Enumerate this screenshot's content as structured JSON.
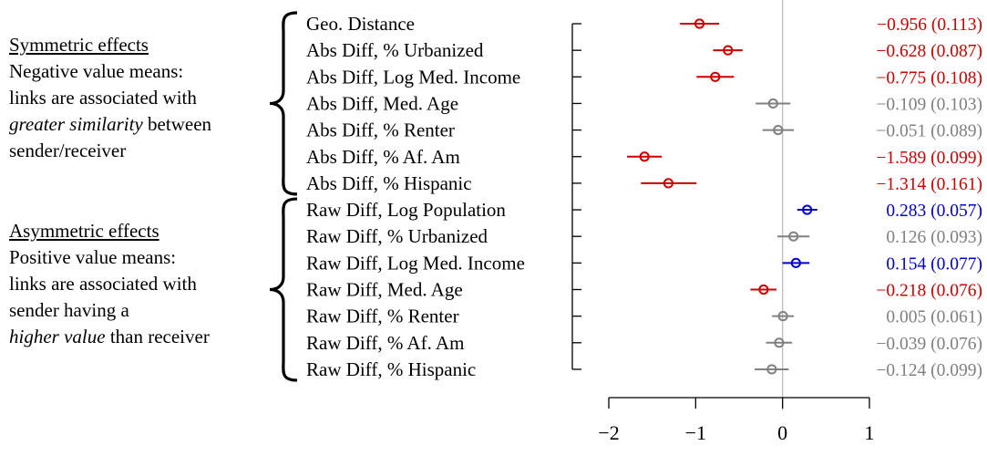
{
  "chart_data": {
    "type": "scatter",
    "subtype": "coefficient-forest-plot",
    "title": "",
    "xlabel": "",
    "ylabel": "",
    "xlim": [
      -2.1,
      1.1
    ],
    "xticks": [
      -2,
      -1,
      0,
      1
    ],
    "xtick_labels": [
      "−2",
      "−1",
      "0",
      "1"
    ],
    "reference_line_x": 0,
    "grid": false,
    "colors": {
      "negative_significant": "#cc0000",
      "positive_significant": "#0000cc",
      "not_significant": "#808080"
    },
    "groups": [
      {
        "title": "Symmetric effects",
        "lines": [
          {
            "plain": "Negative value means:"
          },
          {
            "plain": "links are associated with"
          },
          {
            "italic": "greater similarity",
            "plain": " between"
          },
          {
            "plain": "sender/receiver"
          }
        ],
        "start_index": 0,
        "end_index": 6
      },
      {
        "title": "Asymmetric effects",
        "lines": [
          {
            "plain": "Positive value means:"
          },
          {
            "plain": "links are associated with"
          },
          {
            "plain": "sender having a"
          },
          {
            "italic": "higher value",
            "plain": " than receiver"
          }
        ],
        "start_index": 7,
        "end_index": 13
      }
    ],
    "points": [
      {
        "label": "Geo. Distance",
        "estimate": -0.956,
        "se": 0.113,
        "ci": [
          -1.18,
          -0.73
        ],
        "value_label": "−0.956 (0.113)",
        "significance": "negative_significant"
      },
      {
        "label": "Abs Diff, % Urbanized",
        "estimate": -0.628,
        "se": 0.087,
        "ci": [
          -0.8,
          -0.46
        ],
        "value_label": "−0.628 (0.087)",
        "significance": "negative_significant"
      },
      {
        "label": "Abs Diff, Log Med. Income",
        "estimate": -0.775,
        "se": 0.108,
        "ci": [
          -0.99,
          -0.56
        ],
        "value_label": "−0.775 (0.108)",
        "significance": "negative_significant"
      },
      {
        "label": "Abs Diff, Med. Age",
        "estimate": -0.109,
        "se": 0.103,
        "ci": [
          -0.31,
          0.09
        ],
        "value_label": "−0.109 (0.103)",
        "significance": "not_significant"
      },
      {
        "label": "Abs Diff, % Renter",
        "estimate": -0.051,
        "se": 0.089,
        "ci": [
          -0.23,
          0.13
        ],
        "value_label": "−0.051 (0.089)",
        "significance": "not_significant"
      },
      {
        "label": "Abs Diff, % Af. Am",
        "estimate": -1.589,
        "se": 0.099,
        "ci": [
          -1.79,
          -1.39
        ],
        "value_label": "−1.589 (0.099)",
        "significance": "negative_significant"
      },
      {
        "label": "Abs Diff, % Hispanic",
        "estimate": -1.314,
        "se": 0.161,
        "ci": [
          -1.63,
          -0.99
        ],
        "value_label": "−1.314 (0.161)",
        "significance": "negative_significant"
      },
      {
        "label": "Raw Diff, Log Population",
        "estimate": 0.283,
        "se": 0.057,
        "ci": [
          0.17,
          0.4
        ],
        "value_label": "0.283 (0.057)",
        "significance": "positive_significant"
      },
      {
        "label": "Raw Diff, % Urbanized",
        "estimate": 0.126,
        "se": 0.093,
        "ci": [
          -0.06,
          0.31
        ],
        "value_label": "0.126 (0.093)",
        "significance": "not_significant"
      },
      {
        "label": "Raw Diff, Log Med. Income",
        "estimate": 0.154,
        "se": 0.077,
        "ci": [
          0.0,
          0.31
        ],
        "value_label": "0.154 (0.077)",
        "significance": "positive_significant"
      },
      {
        "label": "Raw Diff, Med. Age",
        "estimate": -0.218,
        "se": 0.076,
        "ci": [
          -0.37,
          -0.07
        ],
        "value_label": "−0.218 (0.076)",
        "significance": "negative_significant"
      },
      {
        "label": "Raw Diff, % Renter",
        "estimate": 0.005,
        "se": 0.061,
        "ci": [
          -0.12,
          0.13
        ],
        "value_label": "0.005 (0.061)",
        "significance": "not_significant"
      },
      {
        "label": "Raw Diff, % Af. Am",
        "estimate": -0.039,
        "se": 0.076,
        "ci": [
          -0.19,
          0.11
        ],
        "value_label": "−0.039 (0.076)",
        "significance": "not_significant"
      },
      {
        "label": "Raw Diff, % Hispanic",
        "estimate": -0.124,
        "se": 0.099,
        "ci": [
          -0.32,
          0.07
        ],
        "value_label": "−0.124 (0.099)",
        "significance": "not_significant"
      }
    ]
  }
}
